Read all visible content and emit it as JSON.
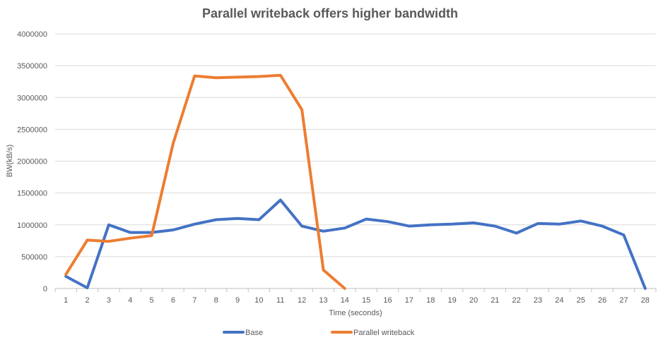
{
  "chart_data": {
    "type": "line",
    "title": "Parallel writeback offers higher bandwidth",
    "xlabel": "Time (seconds)",
    "ylabel": "BW(kB/s)",
    "ylim": [
      0,
      4000000
    ],
    "yticks": [
      "0",
      "500000",
      "1000000",
      "1500000",
      "2000000",
      "2500000",
      "3000000",
      "3500000",
      "4000000"
    ],
    "categories": [
      "1",
      "2",
      "3",
      "4",
      "5",
      "6",
      "7",
      "8",
      "9",
      "10",
      "11",
      "12",
      "13",
      "14",
      "15",
      "16",
      "17",
      "18",
      "19",
      "20",
      "21",
      "22",
      "23",
      "24",
      "25",
      "26",
      "27",
      "28"
    ],
    "grid": true,
    "legend_position": "bottom",
    "series": [
      {
        "name": "Base",
        "color": "#4472C4",
        "values": [
          190000,
          10000,
          1000000,
          880000,
          880000,
          920000,
          1010000,
          1080000,
          1100000,
          1080000,
          1390000,
          980000,
          900000,
          950000,
          1090000,
          1050000,
          980000,
          1000000,
          1010000,
          1030000,
          980000,
          870000,
          1020000,
          1010000,
          1060000,
          980000,
          840000,
          0
        ]
      },
      {
        "name": "Parallel writeback",
        "color": "#ED7D31",
        "values": [
          220000,
          760000,
          740000,
          790000,
          830000,
          2280000,
          3340000,
          3310000,
          3320000,
          3330000,
          3350000,
          2810000,
          290000,
          0,
          null,
          null,
          null,
          null,
          null,
          null,
          null,
          null,
          null,
          null,
          null,
          null,
          null,
          null
        ]
      }
    ]
  }
}
